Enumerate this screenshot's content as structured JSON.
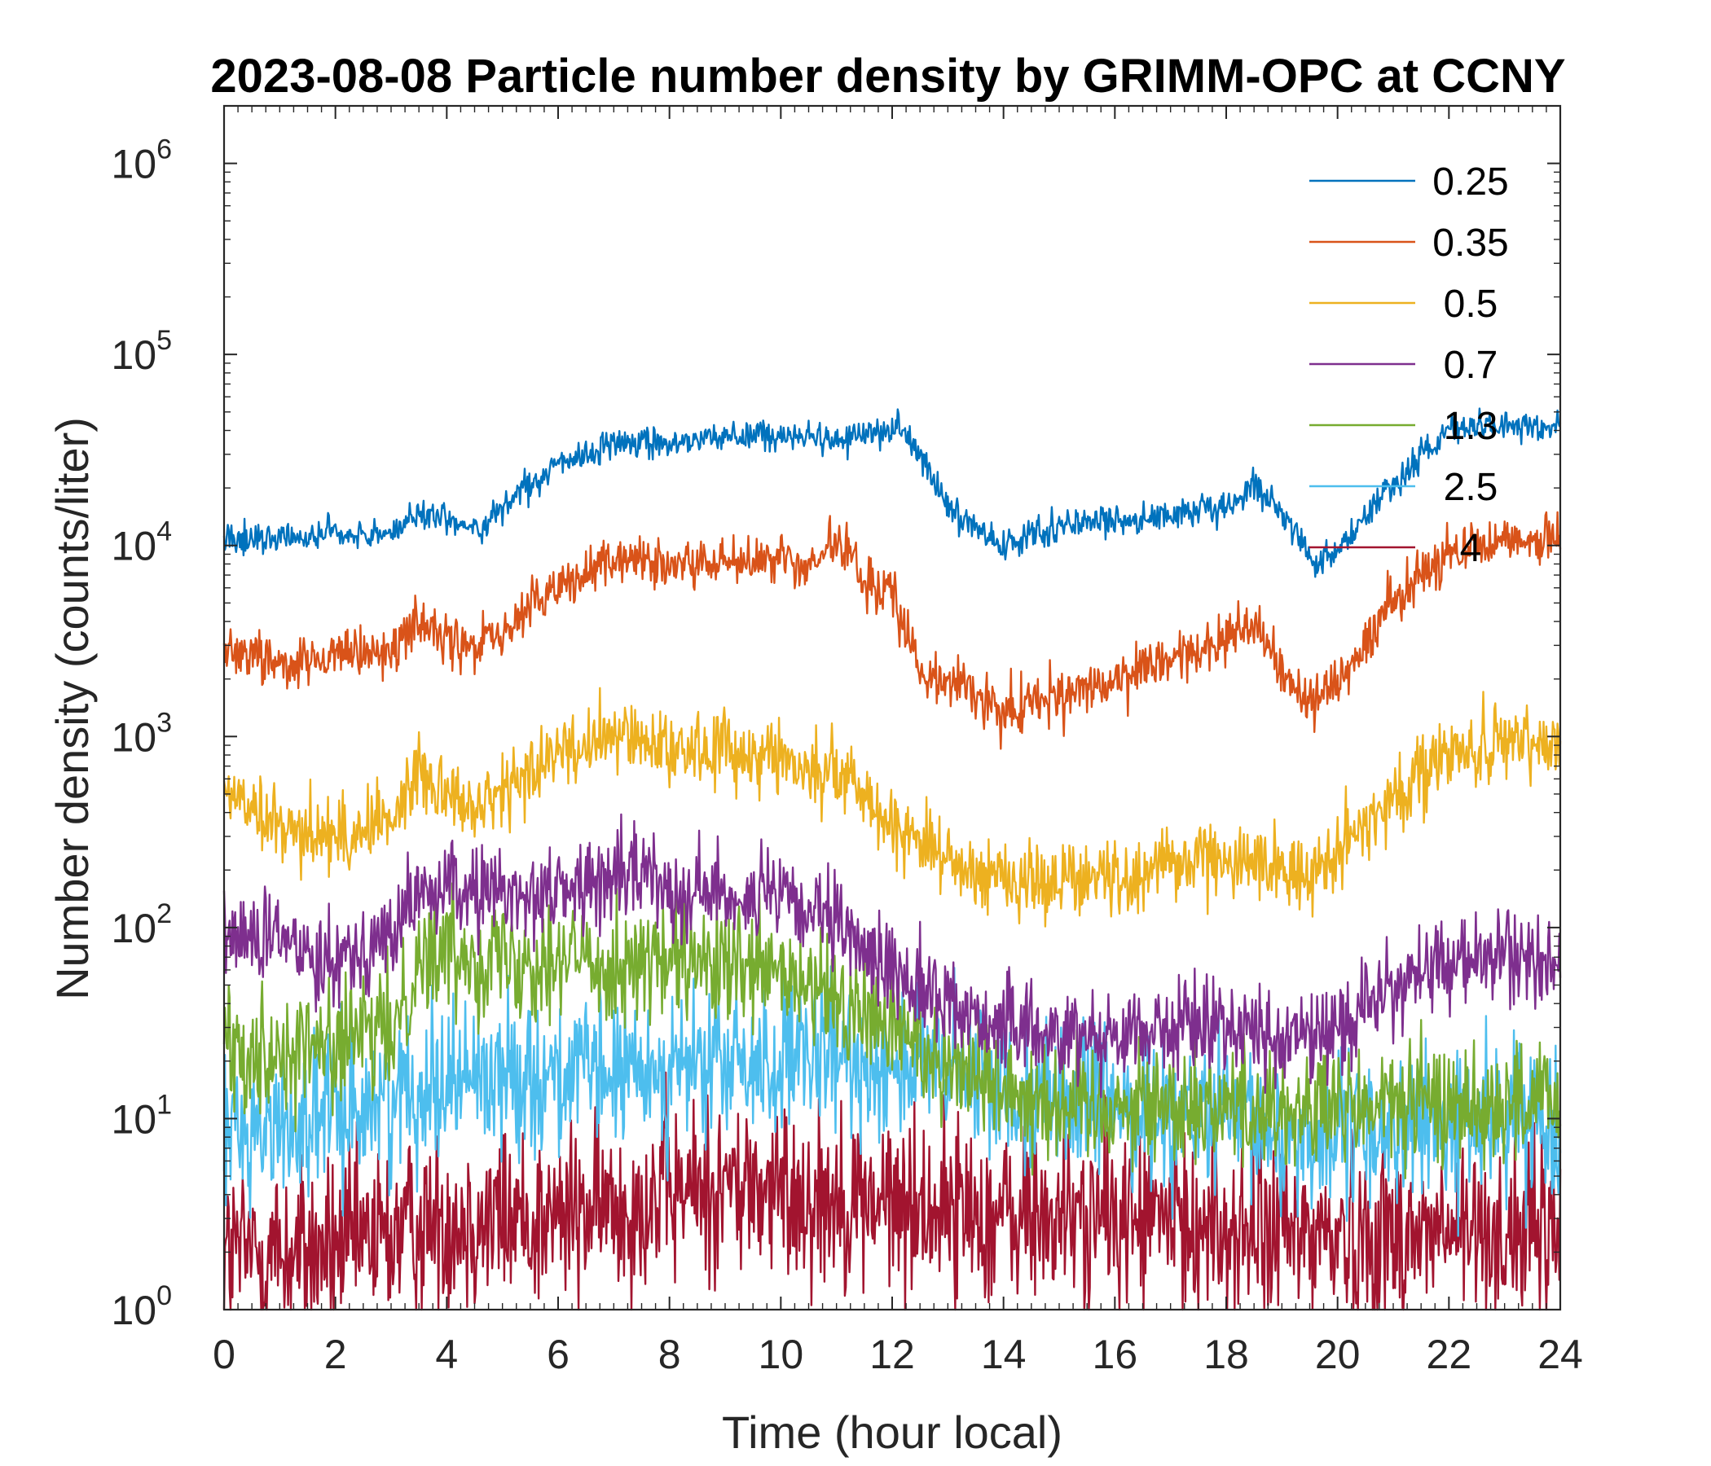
{
  "chart_data": {
    "type": "line",
    "title": "2023-08-08 Particle number density by GRIMM-OPC at CCNY",
    "xlabel": "Time (hour local)",
    "ylabel": "Number density (counts/liter)",
    "xlim": [
      0,
      24
    ],
    "ylim": [
      1,
      2000000
    ],
    "yscale": "log",
    "xticks": [
      0,
      2,
      4,
      6,
      8,
      10,
      12,
      14,
      16,
      18,
      20,
      22,
      24
    ],
    "xtick_labels": [
      "0",
      "2",
      "4",
      "6",
      "8",
      "10",
      "12",
      "14",
      "16",
      "18",
      "20",
      "22",
      "24"
    ],
    "yticks": [
      1,
      10,
      100,
      1000,
      10000,
      100000,
      1000000
    ],
    "ytick_exponents": [
      "0",
      "1",
      "2",
      "3",
      "4",
      "5",
      "6"
    ],
    "ytick_base": "10",
    "legend_position": "top-right",
    "series": [
      {
        "name": "0.25",
        "color": "#0072BD",
        "noise": 0.04,
        "x": [
          0,
          0.5,
          1,
          2,
          3,
          3.5,
          4,
          4.6,
          5,
          6,
          7,
          8,
          9,
          10,
          11,
          12,
          12.1,
          12.5,
          13,
          14,
          15,
          16,
          17,
          18,
          18.5,
          19,
          19.5,
          20,
          21,
          22,
          23,
          24
        ],
        "values": [
          11000,
          10500,
          11000,
          11500,
          11500,
          15000,
          13500,
          12000,
          16000,
          26000,
          35000,
          34000,
          38000,
          37000,
          36000,
          40000,
          45000,
          30000,
          16000,
          10000,
          12500,
          14000,
          14000,
          15500,
          21000,
          15000,
          8500,
          9500,
          21000,
          40000,
          43000,
          42000
        ]
      },
      {
        "name": "0.35",
        "color": "#D95319",
        "noise": 0.07,
        "x": [
          0,
          0.5,
          1,
          2,
          3,
          3.5,
          4,
          4.6,
          5,
          6,
          7,
          8,
          9,
          10,
          10.5,
          11,
          11.5,
          12,
          12.5,
          13,
          14,
          15,
          16,
          17,
          18,
          18.5,
          19,
          19.5,
          20,
          21,
          22,
          23,
          24
        ],
        "values": [
          3000,
          2700,
          2500,
          2500,
          2800,
          4000,
          3200,
          3000,
          3500,
          6000,
          8500,
          8000,
          8000,
          8500,
          7500,
          11000,
          6500,
          5500,
          2300,
          2000,
          1400,
          1600,
          1900,
          2500,
          3200,
          4000,
          2200,
          1500,
          2000,
          5000,
          9500,
          11000,
          10500
        ]
      },
      {
        "name": "0.5",
        "color": "#EDB120",
        "noise": 0.1,
        "x": [
          0,
          0.5,
          1,
          2,
          2.5,
          3,
          3.5,
          4,
          4.5,
          5,
          6,
          7,
          7.5,
          8,
          9,
          10,
          10.5,
          11,
          12,
          13,
          14,
          15,
          16,
          17,
          18,
          19,
          19.5,
          20,
          21,
          22,
          23,
          24
        ],
        "values": [
          550,
          380,
          330,
          300,
          330,
          380,
          650,
          550,
          400,
          500,
          850,
          950,
          1050,
          850,
          850,
          800,
          650,
          700,
          350,
          230,
          180,
          180,
          180,
          220,
          230,
          210,
          180,
          250,
          500,
          800,
          900,
          900
        ]
      },
      {
        "name": "0.7",
        "color": "#7E2F8E",
        "noise": 0.12,
        "x": [
          0,
          1,
          2,
          3,
          3.5,
          4,
          5,
          6,
          7,
          7.6,
          8,
          9,
          10,
          11,
          12,
          13,
          14,
          15,
          16,
          17,
          18,
          19,
          20,
          21,
          22,
          23,
          24
        ],
        "values": [
          90,
          85,
          70,
          90,
          150,
          160,
          150,
          155,
          180,
          200,
          160,
          150,
          140,
          100,
          60,
          40,
          30,
          28,
          28,
          30,
          32,
          25,
          30,
          50,
          65,
          70,
          65
        ]
      },
      {
        "name": "1.3",
        "color": "#77AC30",
        "noise": 0.16,
        "x": [
          0,
          1,
          2,
          3,
          3.5,
          4,
          5,
          6,
          7,
          8,
          9,
          10,
          11,
          12,
          13,
          14,
          15,
          16,
          17,
          18,
          19,
          20,
          21,
          22,
          23,
          24
        ],
        "values": [
          25,
          22,
          25,
          28,
          70,
          75,
          70,
          70,
          65,
          65,
          60,
          55,
          40,
          30,
          20,
          15,
          12,
          12,
          12,
          12,
          11,
          11,
          12,
          12,
          12,
          12
        ]
      },
      {
        "name": "2.5",
        "color": "#4DBEEE",
        "noise": 0.2,
        "x": [
          0,
          1,
          2,
          3,
          4,
          5,
          6,
          7,
          8,
          9,
          10,
          11,
          12,
          13,
          14,
          15,
          16,
          17,
          18,
          19,
          20,
          21,
          22,
          23,
          24
        ],
        "values": [
          9,
          9,
          11,
          13,
          17,
          17,
          17,
          17,
          18,
          19,
          19,
          20,
          20,
          18,
          15,
          13,
          12,
          11,
          10,
          8,
          8,
          9,
          9,
          10,
          10
        ]
      },
      {
        "name": "4",
        "color": "#A2142F",
        "noise": 0.24,
        "x": [
          0,
          1,
          2,
          3,
          4,
          5,
          6,
          7,
          8,
          9,
          10,
          11,
          12,
          13,
          14,
          15,
          16,
          17,
          18,
          19,
          20,
          21,
          22,
          23,
          24
        ],
        "values": [
          2,
          2,
          2,
          2.5,
          3,
          3,
          3,
          3.5,
          4,
          4.5,
          4,
          4,
          3.5,
          3.5,
          3,
          3,
          3,
          3,
          2.5,
          2.5,
          2.5,
          2.5,
          2.5,
          2.5,
          2.5
        ]
      }
    ]
  }
}
